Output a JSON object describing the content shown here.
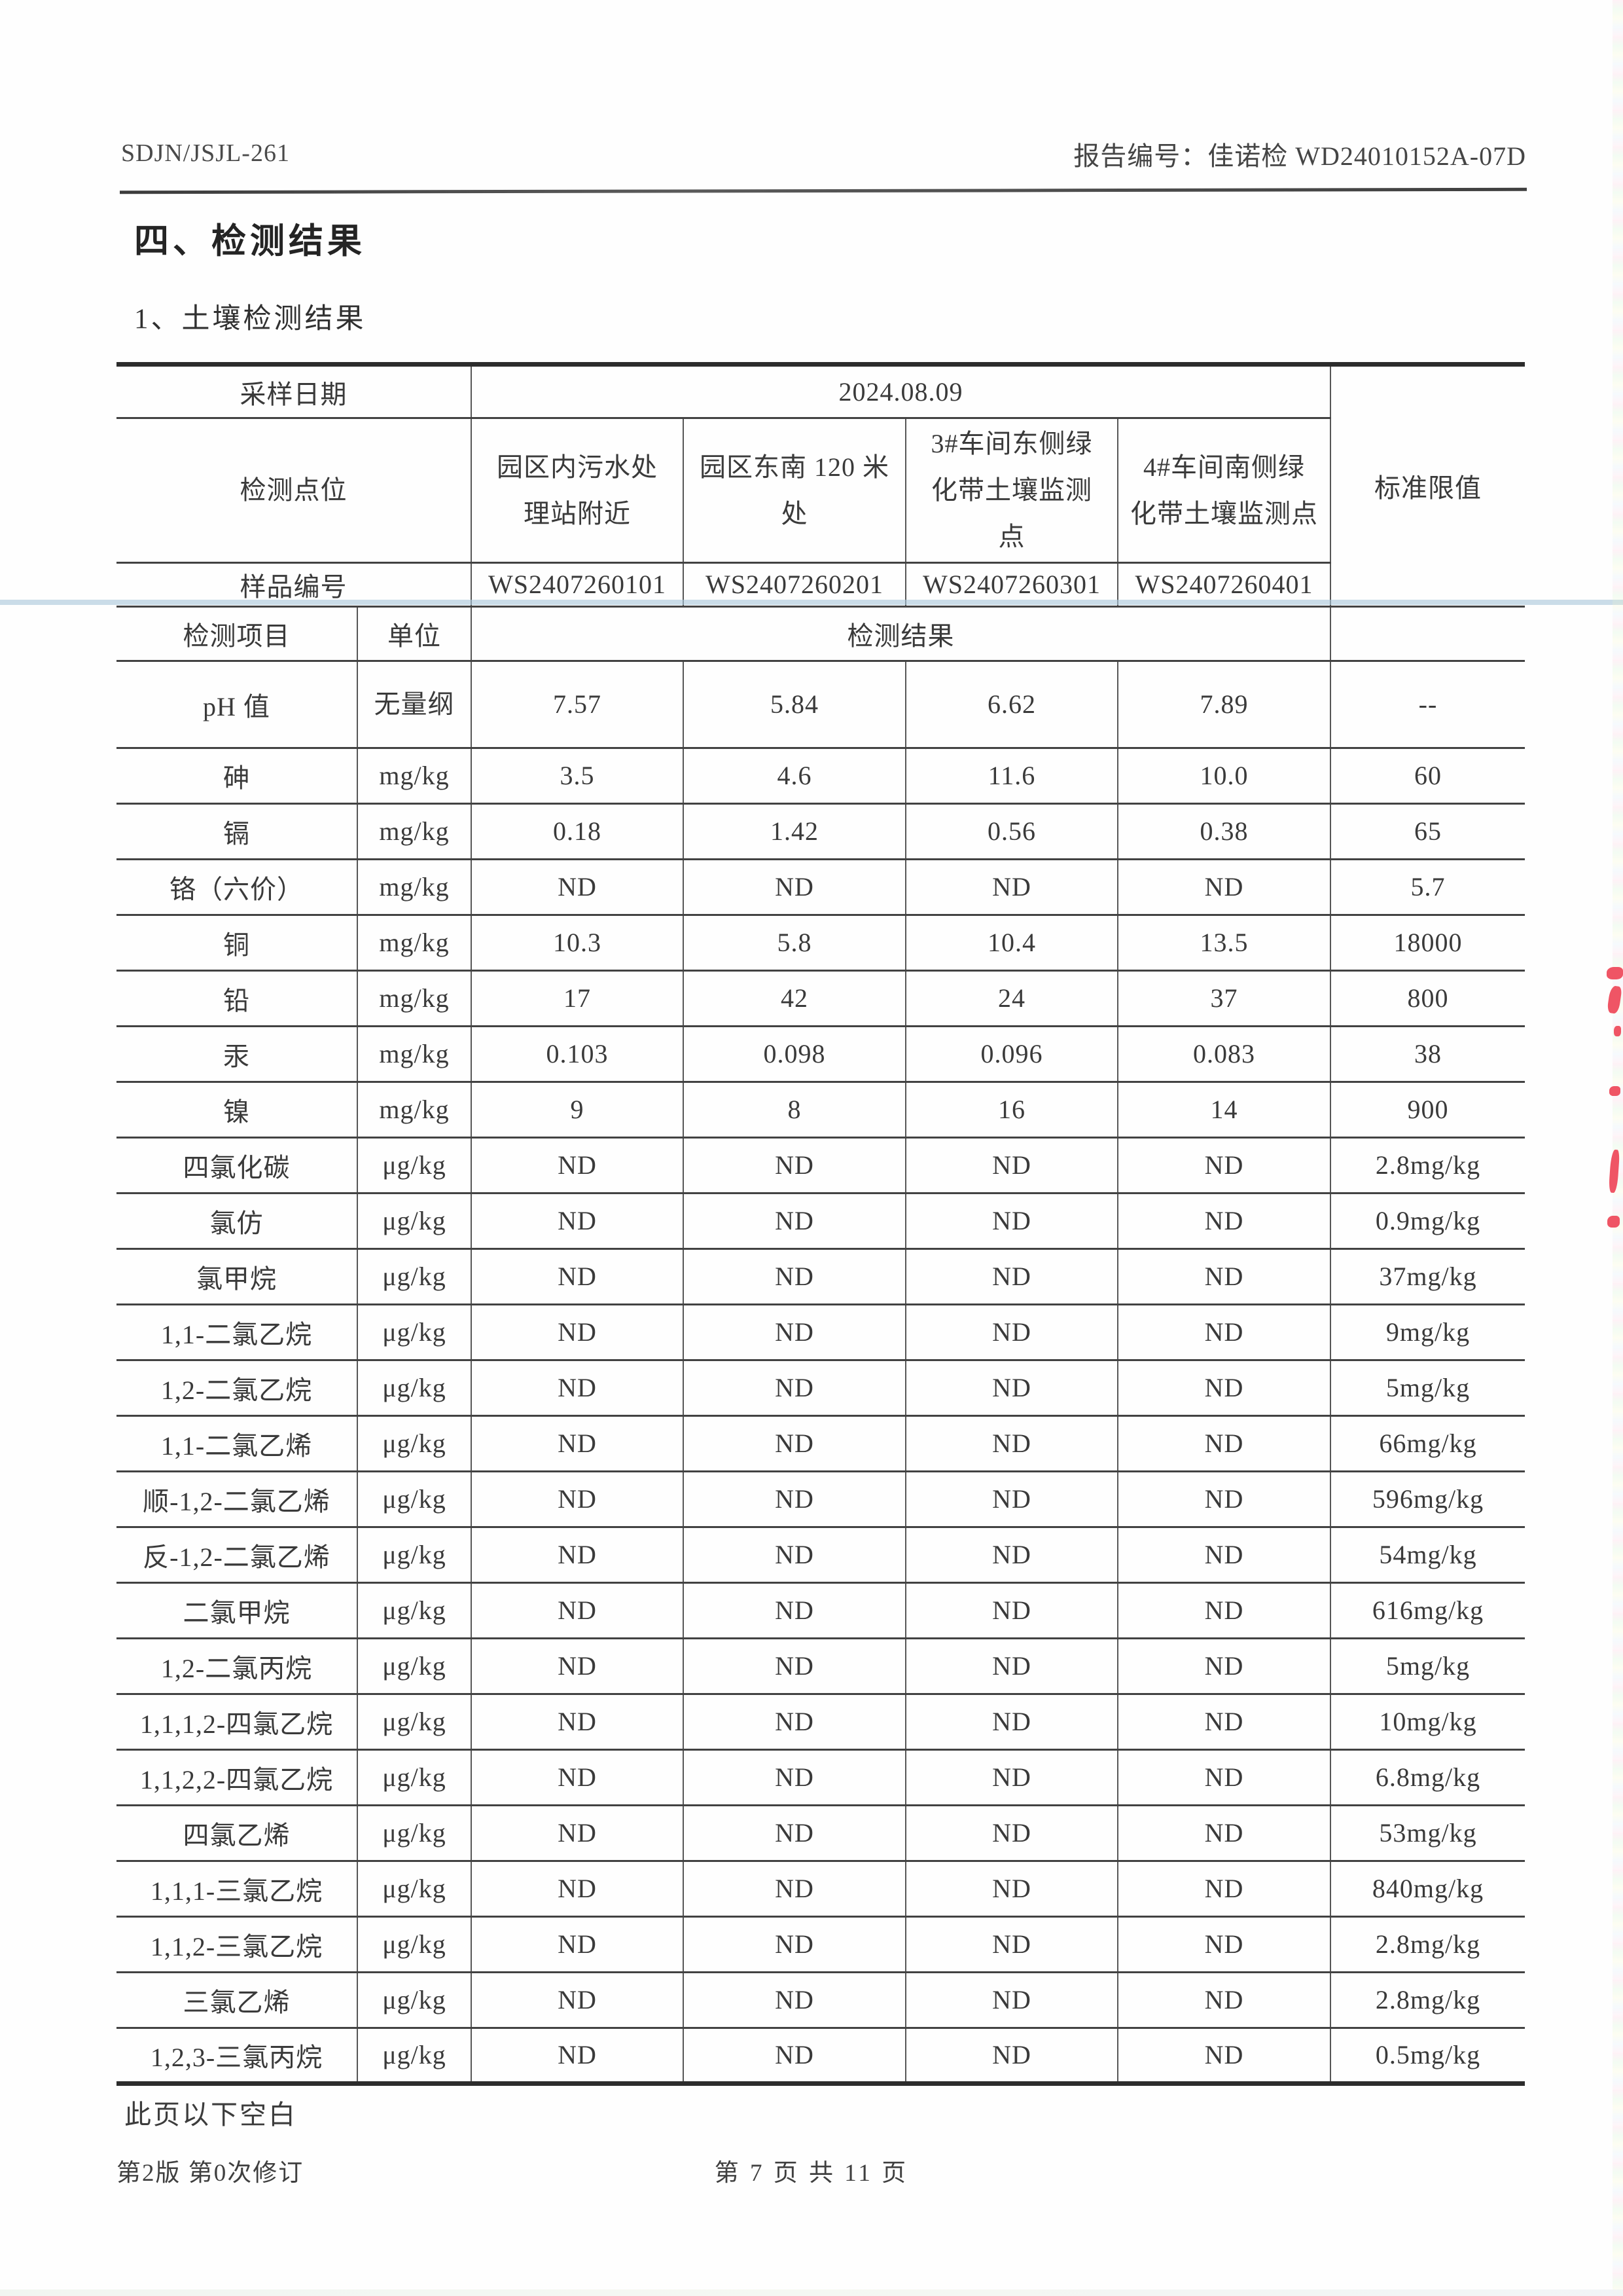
{
  "document": {
    "header": {
      "doc_code": "SDJN/JSJL-261",
      "report_no": "报告编号：佳诺检 WD24010152A-07D"
    },
    "section_title": "四、检测结果",
    "subsection_title": "1、土壤检测结果",
    "end_note": "此页以下空白",
    "footer": {
      "revision": "第2版 第0次修订",
      "page_info": "第 7 页 共 11 页"
    }
  },
  "table": {
    "labels": {
      "sampling_date": "采样日期",
      "monitoring_point": "检测点位",
      "sample_no": "样品编号",
      "item": "检测项目",
      "unit": "单位",
      "result": "检测结果",
      "limit": "标准限值"
    },
    "sampling_date_value": "2024.08.09",
    "monitoring_points": [
      "园区内污水处理站附近",
      "园区东南 120 米处",
      "3#车间东侧绿化带土壤监测点",
      "4#车间南侧绿化带土壤监测点"
    ],
    "sample_numbers": [
      "WS2407260101",
      "WS2407260201",
      "WS2407260301",
      "WS2407260401"
    ],
    "rows": [
      {
        "item": "pH 值",
        "unit": "无量纲",
        "values": [
          "7.57",
          "5.84",
          "6.62",
          "7.89"
        ],
        "limit": "--"
      },
      {
        "item": "砷",
        "unit": "mg/kg",
        "values": [
          "3.5",
          "4.6",
          "11.6",
          "10.0"
        ],
        "limit": "60"
      },
      {
        "item": "镉",
        "unit": "mg/kg",
        "values": [
          "0.18",
          "1.42",
          "0.56",
          "0.38"
        ],
        "limit": "65"
      },
      {
        "item": "铬（六价）",
        "unit": "mg/kg",
        "values": [
          "ND",
          "ND",
          "ND",
          "ND"
        ],
        "limit": "5.7"
      },
      {
        "item": "铜",
        "unit": "mg/kg",
        "values": [
          "10.3",
          "5.8",
          "10.4",
          "13.5"
        ],
        "limit": "18000"
      },
      {
        "item": "铅",
        "unit": "mg/kg",
        "values": [
          "17",
          "42",
          "24",
          "37"
        ],
        "limit": "800"
      },
      {
        "item": "汞",
        "unit": "mg/kg",
        "values": [
          "0.103",
          "0.098",
          "0.096",
          "0.083"
        ],
        "limit": "38"
      },
      {
        "item": "镍",
        "unit": "mg/kg",
        "values": [
          "9",
          "8",
          "16",
          "14"
        ],
        "limit": "900"
      },
      {
        "item": "四氯化碳",
        "unit": "μg/kg",
        "values": [
          "ND",
          "ND",
          "ND",
          "ND"
        ],
        "limit": "2.8mg/kg"
      },
      {
        "item": "氯仿",
        "unit": "μg/kg",
        "values": [
          "ND",
          "ND",
          "ND",
          "ND"
        ],
        "limit": "0.9mg/kg"
      },
      {
        "item": "氯甲烷",
        "unit": "μg/kg",
        "values": [
          "ND",
          "ND",
          "ND",
          "ND"
        ],
        "limit": "37mg/kg"
      },
      {
        "item": "1,1-二氯乙烷",
        "unit": "μg/kg",
        "values": [
          "ND",
          "ND",
          "ND",
          "ND"
        ],
        "limit": "9mg/kg"
      },
      {
        "item": "1,2-二氯乙烷",
        "unit": "μg/kg",
        "values": [
          "ND",
          "ND",
          "ND",
          "ND"
        ],
        "limit": "5mg/kg"
      },
      {
        "item": "1,1-二氯乙烯",
        "unit": "μg/kg",
        "values": [
          "ND",
          "ND",
          "ND",
          "ND"
        ],
        "limit": "66mg/kg"
      },
      {
        "item": "顺-1,2-二氯乙烯",
        "unit": "μg/kg",
        "values": [
          "ND",
          "ND",
          "ND",
          "ND"
        ],
        "limit": "596mg/kg"
      },
      {
        "item": "反-1,2-二氯乙烯",
        "unit": "μg/kg",
        "values": [
          "ND",
          "ND",
          "ND",
          "ND"
        ],
        "limit": "54mg/kg"
      },
      {
        "item": "二氯甲烷",
        "unit": "μg/kg",
        "values": [
          "ND",
          "ND",
          "ND",
          "ND"
        ],
        "limit": "616mg/kg"
      },
      {
        "item": "1,2-二氯丙烷",
        "unit": "μg/kg",
        "values": [
          "ND",
          "ND",
          "ND",
          "ND"
        ],
        "limit": "5mg/kg"
      },
      {
        "item": "1,1,1,2-四氯乙烷",
        "unit": "μg/kg",
        "values": [
          "ND",
          "ND",
          "ND",
          "ND"
        ],
        "limit": "10mg/kg"
      },
      {
        "item": "1,1,2,2-四氯乙烷",
        "unit": "μg/kg",
        "values": [
          "ND",
          "ND",
          "ND",
          "ND"
        ],
        "limit": "6.8mg/kg"
      },
      {
        "item": "四氯乙烯",
        "unit": "μg/kg",
        "values": [
          "ND",
          "ND",
          "ND",
          "ND"
        ],
        "limit": "53mg/kg"
      },
      {
        "item": "1,1,1-三氯乙烷",
        "unit": "μg/kg",
        "values": [
          "ND",
          "ND",
          "ND",
          "ND"
        ],
        "limit": "840mg/kg"
      },
      {
        "item": "1,1,2-三氯乙烷",
        "unit": "μg/kg",
        "values": [
          "ND",
          "ND",
          "ND",
          "ND"
        ],
        "limit": "2.8mg/kg"
      },
      {
        "item": "三氯乙烯",
        "unit": "μg/kg",
        "values": [
          "ND",
          "ND",
          "ND",
          "ND"
        ],
        "limit": "2.8mg/kg"
      },
      {
        "item": "1,2,3-三氯丙烷",
        "unit": "μg/kg",
        "values": [
          "ND",
          "ND",
          "ND",
          "ND"
        ],
        "limit": "0.5mg/kg"
      }
    ]
  },
  "artifacts": {
    "stamp_color": "#ef5565",
    "scan_line_color": "#a9c7da"
  }
}
